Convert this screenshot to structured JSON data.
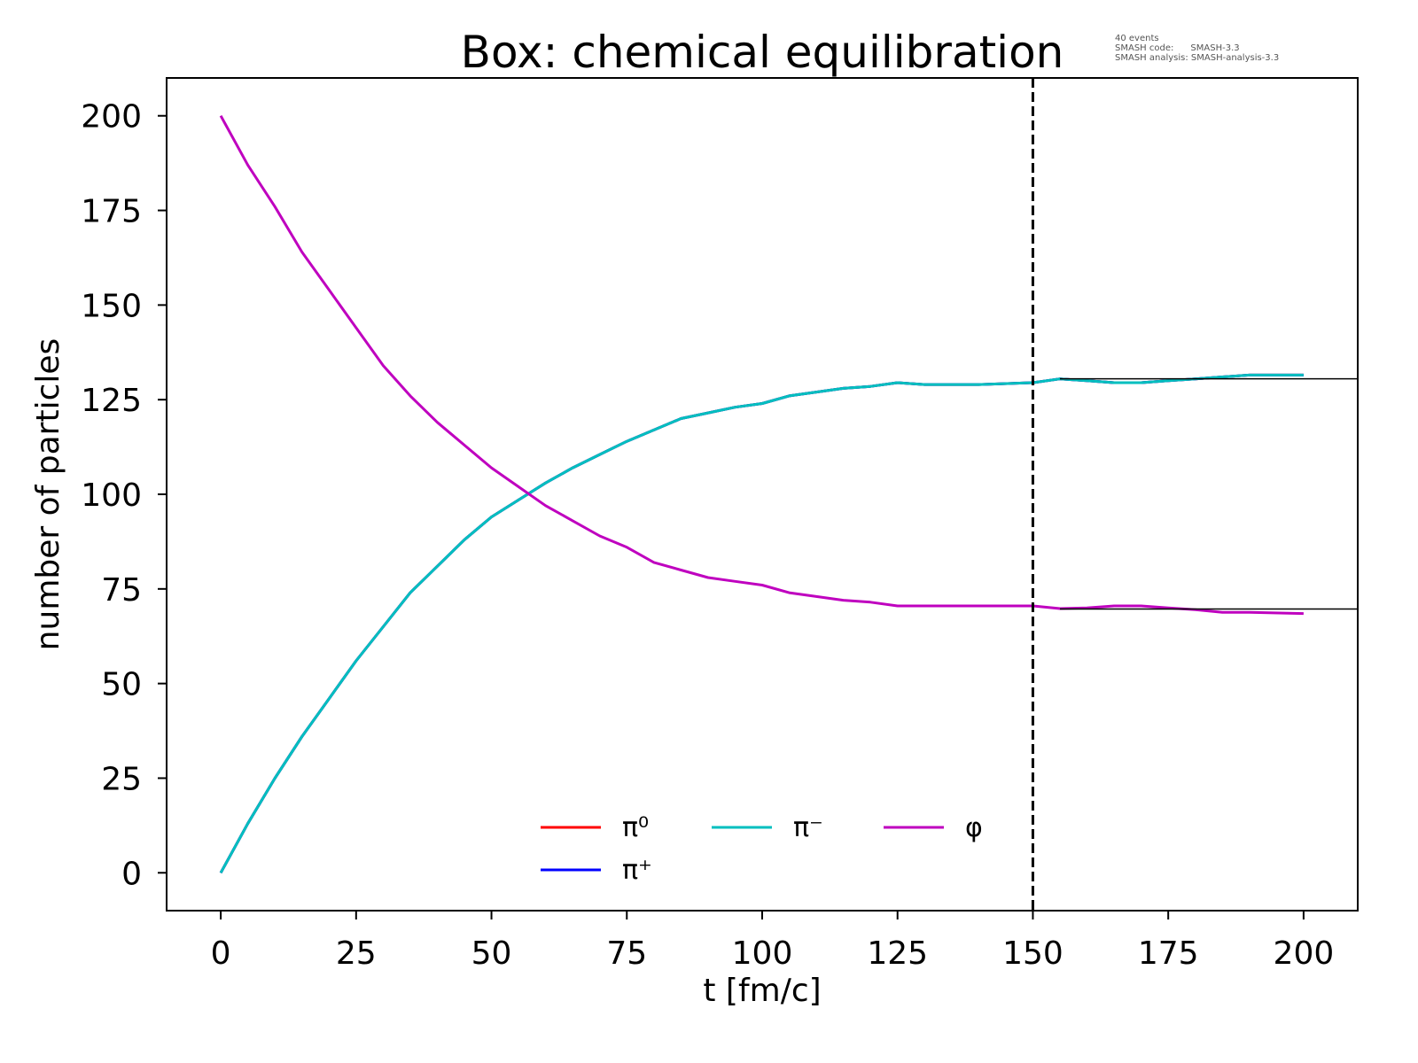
{
  "chart_data": {
    "type": "line",
    "title": "Box: chemical equilibration",
    "xlabel": "t [fm/c]",
    "ylabel": "number of particles",
    "xlim": [
      -10,
      210
    ],
    "ylim": [
      -10,
      210
    ],
    "xticks": [
      0,
      25,
      50,
      75,
      100,
      125,
      150,
      175,
      200
    ],
    "yticks": [
      0,
      25,
      50,
      75,
      100,
      125,
      150,
      175,
      200
    ],
    "grid": false,
    "legend_placement": "bottom-center",
    "info": [
      "40 events",
      "SMASH code:      SMASH-3.3",
      "SMASH analysis: SMASH-analysis-3.3"
    ],
    "vline": {
      "x": 150,
      "style": "dashed",
      "color": "#000000"
    },
    "hlines": [
      {
        "y": 130.5,
        "x_from": 155,
        "color": "#000000"
      },
      {
        "y": 69.7,
        "x_from": 155,
        "color": "#000000"
      }
    ],
    "x": [
      0,
      5,
      10,
      15,
      20,
      25,
      30,
      35,
      40,
      45,
      50,
      55,
      60,
      65,
      70,
      75,
      80,
      85,
      90,
      95,
      100,
      105,
      110,
      115,
      120,
      125,
      130,
      140,
      150,
      155,
      160,
      165,
      170,
      175,
      180,
      185,
      190,
      200
    ],
    "series": [
      {
        "name": "π⁰",
        "color": "#ff0000",
        "values": [
          0,
          13,
          25,
          36,
          46,
          56,
          65,
          74,
          81,
          88,
          94,
          98.5,
          103,
          107,
          110.5,
          114,
          117,
          120,
          121.5,
          123,
          124,
          126,
          127,
          128,
          128.5,
          129.5,
          129,
          129,
          129.5,
          130.5,
          130,
          129.5,
          129.5,
          130,
          130.5,
          131,
          131.5,
          131.5
        ]
      },
      {
        "name": "π⁺",
        "color": "#0000ff",
        "values": [
          0,
          13,
          25,
          36,
          46,
          56,
          65,
          74,
          81,
          88,
          94,
          98.5,
          103,
          107,
          110.5,
          114,
          117,
          120,
          121.5,
          123,
          124,
          126,
          127,
          128,
          128.5,
          129.5,
          129,
          129,
          129.5,
          130.5,
          130,
          129.5,
          129.5,
          130,
          130.5,
          131,
          131.5,
          131.5
        ]
      },
      {
        "name": "π⁻",
        "color": "#00bfbf",
        "values": [
          0,
          13,
          25,
          36,
          46,
          56,
          65,
          74,
          81,
          88,
          94,
          98.5,
          103,
          107,
          110.5,
          114,
          117,
          120,
          121.5,
          123,
          124,
          126,
          127,
          128,
          128.5,
          129.5,
          129,
          129,
          129.5,
          130.5,
          130,
          129.5,
          129.5,
          130,
          130.5,
          131,
          131.5,
          131.5
        ]
      },
      {
        "name": "φ",
        "color": "#bf00bf",
        "values": [
          200,
          187,
          176,
          164,
          154,
          144,
          134,
          126,
          119,
          113,
          107,
          102,
          97,
          93,
          89,
          86,
          82,
          80,
          78,
          77,
          76,
          74,
          73,
          72,
          71.5,
          70.5,
          70.5,
          70.5,
          70.5,
          69.8,
          70,
          70.5,
          70.5,
          70,
          69.5,
          68.8,
          68.8,
          68.5
        ]
      }
    ]
  }
}
